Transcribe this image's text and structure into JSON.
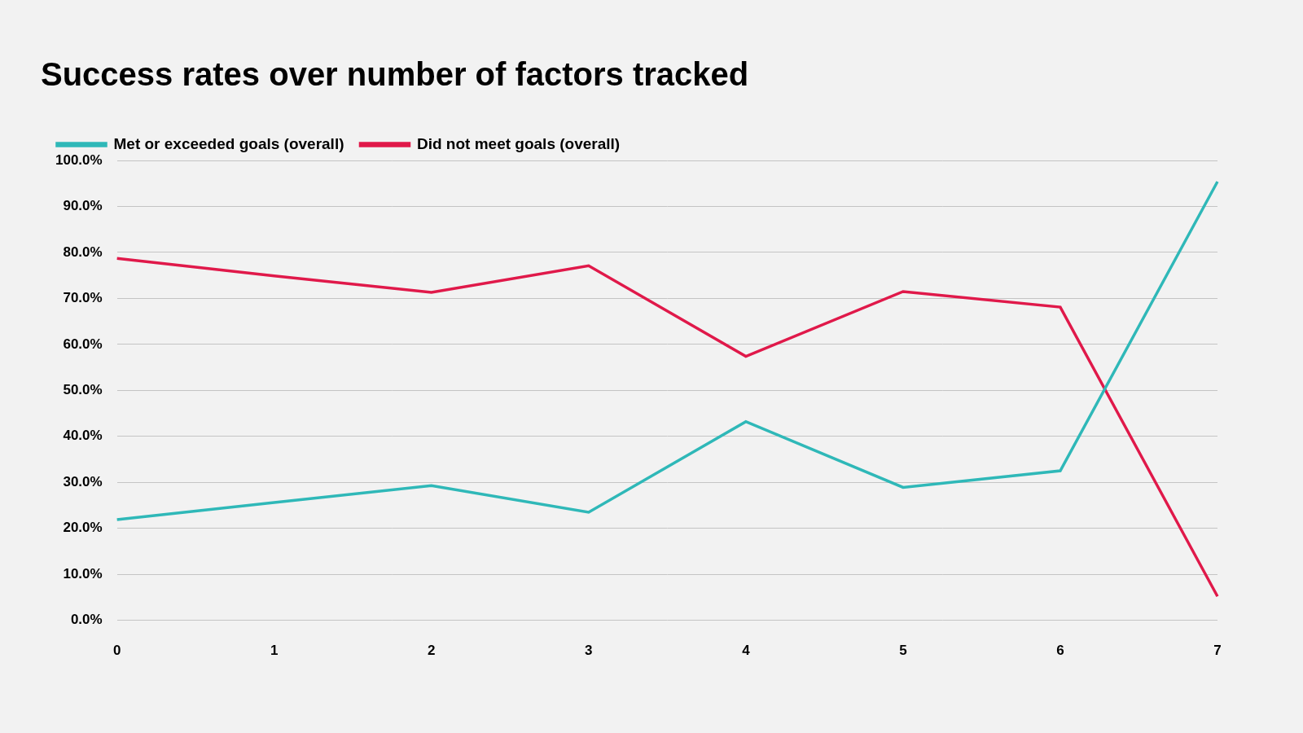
{
  "chart_data": {
    "type": "line",
    "title": "Success rates over number of factors tracked",
    "categories": [
      "0",
      "1",
      "2",
      "3",
      "4",
      "5",
      "6",
      "7"
    ],
    "series": [
      {
        "name": "Met or exceeded goals (overall)",
        "color": "#2fb8b8",
        "values": [
          21.9,
          25.6,
          29.3,
          23.5,
          43.2,
          28.9,
          32.5,
          95.4
        ]
      },
      {
        "name": "Did not meet goals (overall)",
        "color": "#e0194a",
        "values": [
          78.7,
          74.9,
          71.3,
          77.1,
          57.4,
          71.5,
          68.1,
          5.2
        ]
      }
    ],
    "ylim": [
      0,
      100
    ],
    "yticks": [
      {
        "value": 0,
        "label": "0.0%"
      },
      {
        "value": 10,
        "label": "10.0%"
      },
      {
        "value": 20,
        "label": "20.0%"
      },
      {
        "value": 30,
        "label": "30.0%"
      },
      {
        "value": 40,
        "label": "40.0%"
      },
      {
        "value": 50,
        "label": "50.0%"
      },
      {
        "value": 60,
        "label": "60.0%"
      },
      {
        "value": 70,
        "label": "70.0%"
      },
      {
        "value": 80,
        "label": "80.0%"
      },
      {
        "value": 90,
        "label": "90.0%"
      },
      {
        "value": 100,
        "label": "100.0%"
      }
    ],
    "grid": true,
    "legend": "top-left"
  }
}
